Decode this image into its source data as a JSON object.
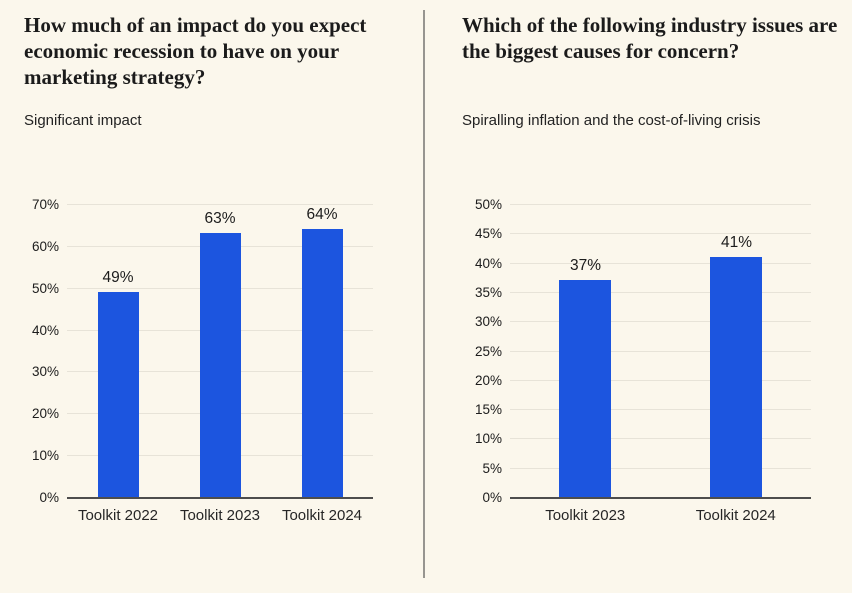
{
  "colors": {
    "background": "#FBF7EC",
    "bar_accent": "#1C55DF",
    "gridline": "#e7e3d8",
    "axis_line": "#4d4d4d",
    "divider": "#979590"
  },
  "chart_data": [
    {
      "type": "bar",
      "title": "How much of an impact do you expect economic recession to have on your marketing strategy?",
      "subtitle": "Significant impact",
      "categories": [
        "Toolkit 2022",
        "Toolkit 2023",
        "Toolkit 2024"
      ],
      "values": [
        49,
        63,
        64
      ],
      "value_labels": [
        "49%",
        "63%",
        "64%"
      ],
      "ylim": [
        0,
        70
      ],
      "ytick_labels": [
        "0%",
        "10%",
        "20%",
        "30%",
        "40%",
        "50%",
        "60%",
        "70%"
      ],
      "grid": true,
      "legend": "none",
      "bar_color": "#1C55DF"
    },
    {
      "type": "bar",
      "title": "Which of the following industry issues are the biggest causes for concern?",
      "subtitle": "Spiralling inflation and the cost-of-living crisis",
      "categories": [
        "Toolkit 2023",
        "Toolkit 2024"
      ],
      "values": [
        37,
        41
      ],
      "value_labels": [
        "37%",
        "41%"
      ],
      "ylim": [
        0,
        50
      ],
      "ytick_labels": [
        "0%",
        "5%",
        "10%",
        "15%",
        "20%",
        "25%",
        "30%",
        "35%",
        "40%",
        "45%",
        "50%"
      ],
      "grid": true,
      "legend": "none",
      "bar_color": "#1C55DF"
    }
  ]
}
